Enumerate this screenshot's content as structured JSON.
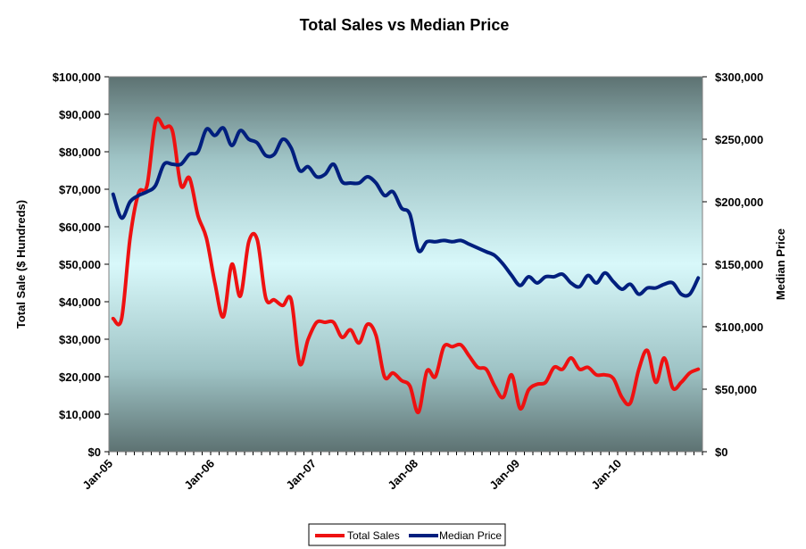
{
  "chart_data": {
    "type": "line",
    "title": "Total Sales vs  Median Price",
    "x_tick_labels": [
      "Jan-05",
      "Jan-06",
      "Jan-07",
      "Jan-08",
      "Jan-09",
      "Jan-10"
    ],
    "y_left": {
      "label": "Total Sale ($ Hundreds)",
      "range": [
        0,
        100000
      ],
      "tick_labels": [
        "$0",
        "$10,000",
        "$20,000",
        "$30,000",
        "$40,000",
        "$50,000",
        "$60,000",
        "$70,000",
        "$80,000",
        "$90,000",
        "$100,000"
      ]
    },
    "y_right": {
      "label": "Median Price",
      "range": [
        0,
        300000
      ],
      "tick_labels": [
        "$0",
        "$50,000",
        "$100,000",
        "$150,000",
        "$200,000",
        "$250,000",
        "$300,000"
      ]
    },
    "x_months": [
      "2005-01",
      "2005-02",
      "2005-03",
      "2005-04",
      "2005-05",
      "2005-06",
      "2005-07",
      "2005-08",
      "2005-09",
      "2005-10",
      "2005-11",
      "2005-12",
      "2006-01",
      "2006-02",
      "2006-03",
      "2006-04",
      "2006-05",
      "2006-06",
      "2006-07",
      "2006-08",
      "2006-09",
      "2006-10",
      "2006-11",
      "2006-12",
      "2007-01",
      "2007-02",
      "2007-03",
      "2007-04",
      "2007-05",
      "2007-06",
      "2007-07",
      "2007-08",
      "2007-09",
      "2007-10",
      "2007-11",
      "2007-12",
      "2008-01",
      "2008-02",
      "2008-03",
      "2008-04",
      "2008-05",
      "2008-06",
      "2008-07",
      "2008-08",
      "2008-09",
      "2008-10",
      "2008-11",
      "2008-12",
      "2009-01",
      "2009-02",
      "2009-03",
      "2009-04",
      "2009-05",
      "2009-06",
      "2009-07",
      "2009-08",
      "2009-09",
      "2009-10",
      "2009-11",
      "2009-12",
      "2010-01",
      "2010-02",
      "2010-03",
      "2010-04",
      "2010-05",
      "2010-06",
      "2010-07",
      "2010-08",
      "2010-09",
      "2010-10"
    ],
    "series": [
      {
        "name": "Total Sales",
        "axis": "left",
        "color": "#ee1111",
        "values": [
          35500,
          35500,
          57000,
          69000,
          71000,
          88000,
          86500,
          85500,
          71000,
          73000,
          63000,
          57000,
          45000,
          36000,
          50000,
          41500,
          56000,
          56500,
          41000,
          40500,
          39000,
          40500,
          23500,
          30000,
          34500,
          34500,
          34500,
          30500,
          32500,
          29000,
          34000,
          31000,
          20000,
          21000,
          19000,
          17500,
          10500,
          21500,
          20000,
          28000,
          28000,
          28500,
          25500,
          22500,
          22000,
          17500,
          14500,
          20500,
          11500,
          16500,
          18000,
          18500,
          22500,
          22000,
          25000,
          22000,
          22500,
          20500,
          20500,
          19500,
          14500,
          13000,
          22000,
          27000,
          18500,
          25000,
          17000,
          18500,
          21000,
          22000
        ]
      },
      {
        "name": "Median Price",
        "axis": "right",
        "color": "#001f7e",
        "values": [
          206000,
          187000,
          200000,
          205000,
          208000,
          213000,
          230000,
          230000,
          230000,
          238000,
          240000,
          258000,
          253000,
          259000,
          245000,
          257000,
          250000,
          247000,
          237000,
          238000,
          250000,
          243000,
          225000,
          228000,
          220000,
          222000,
          230000,
          216000,
          215000,
          215000,
          220000,
          215000,
          205000,
          208000,
          195000,
          190000,
          161000,
          168000,
          168000,
          169000,
          168000,
          169000,
          166000,
          163000,
          160000,
          157000,
          150000,
          141000,
          133000,
          140000,
          135000,
          140000,
          140000,
          142000,
          135000,
          132000,
          141000,
          135000,
          143000,
          136000,
          130000,
          134000,
          126000,
          131000,
          131000,
          134000,
          135000,
          126000,
          126000,
          139000
        ]
      }
    ],
    "legend_position": "bottom",
    "grid": false
  }
}
